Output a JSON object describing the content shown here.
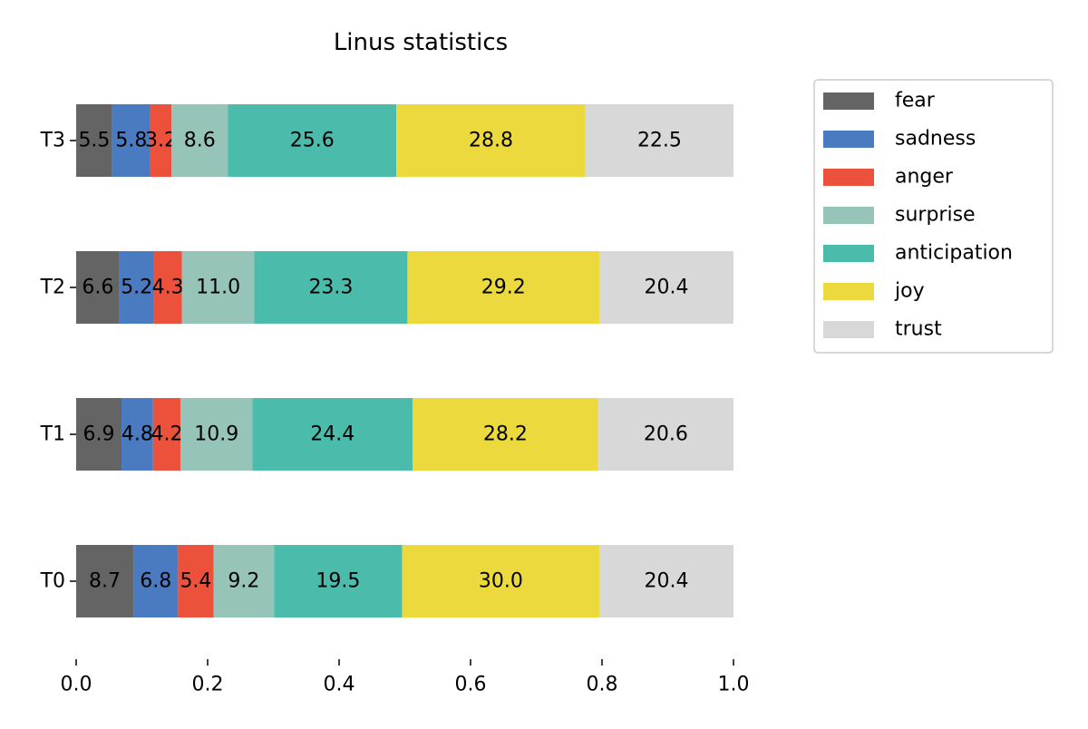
{
  "chart_data": {
    "type": "stacked_barh",
    "title": "Linus statistics",
    "categories": [
      "T0",
      "T1",
      "T2",
      "T3"
    ],
    "series": [
      {
        "name": "fear",
        "color": "#656464",
        "values": [
          0.087,
          0.069,
          0.066,
          0.055
        ],
        "value_labels": [
          "8.7",
          "6.9",
          "6.6",
          "5.5"
        ]
      },
      {
        "name": "sadness",
        "color": "#4a7bc0",
        "values": [
          0.068,
          0.048,
          0.052,
          0.058
        ],
        "value_labels": [
          "6.8",
          "4.8",
          "5.2",
          "5.8"
        ]
      },
      {
        "name": "anger",
        "color": "#ec523b",
        "values": [
          0.054,
          0.042,
          0.043,
          0.032
        ],
        "value_labels": [
          "5.4",
          "4.2",
          "4.3",
          "3.2"
        ]
      },
      {
        "name": "surprise",
        "color": "#97c4b8",
        "values": [
          0.092,
          0.109,
          0.11,
          0.086
        ],
        "value_labels": [
          "9.2",
          "10.9",
          "11.0",
          "8.6"
        ]
      },
      {
        "name": "anticipation",
        "color": "#4bbcab",
        "values": [
          0.195,
          0.244,
          0.233,
          0.256
        ],
        "value_labels": [
          "19.5",
          "24.4",
          "23.3",
          "25.6"
        ]
      },
      {
        "name": "joy",
        "color": "#ecd93d",
        "values": [
          0.3,
          0.282,
          0.292,
          0.288
        ],
        "value_labels": [
          "30.0",
          "28.2",
          "29.2",
          "28.8"
        ]
      },
      {
        "name": "trust",
        "color": "#d8d8d8",
        "values": [
          0.204,
          0.206,
          0.204,
          0.225
        ],
        "value_labels": [
          "20.4",
          "20.6",
          "20.4",
          "22.5"
        ]
      }
    ],
    "xlim": [
      0,
      1
    ],
    "xticks": [
      {
        "value": 0,
        "label": "0.0"
      },
      0.2,
      0.4,
      0.6,
      0.8,
      {
        "value": 1,
        "label": "1.0"
      }
    ],
    "legend": "upper right outside"
  }
}
